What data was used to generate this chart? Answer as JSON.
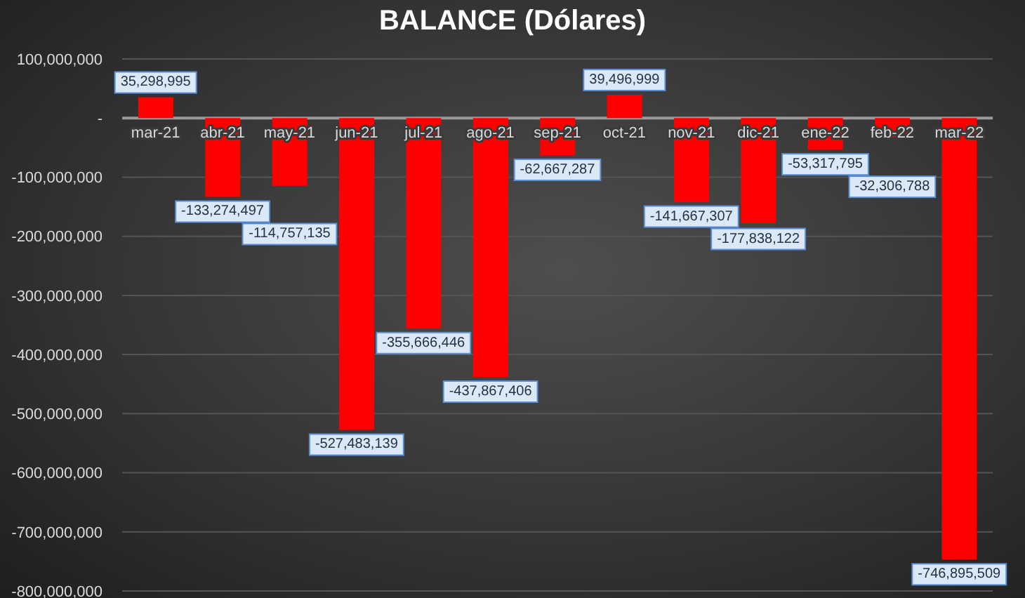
{
  "chart_data": {
    "type": "bar",
    "title": "BALANCE (Dólares)",
    "categories": [
      "mar-21",
      "abr-21",
      "may-21",
      "jun-21",
      "jul-21",
      "ago-21",
      "sep-21",
      "oct-21",
      "nov-21",
      "dic-21",
      "ene-22",
      "feb-22",
      "mar-22"
    ],
    "values": [
      35298995,
      -133274497,
      -114757135,
      -527483139,
      -355666446,
      -437867406,
      -62667287,
      39496999,
      -141667307,
      -177838122,
      -53317795,
      -32306788,
      -746895509
    ],
    "value_labels": [
      "35,298,995",
      "-133,274,497",
      "-114,757,135",
      "-527,483,139",
      "-355,666,446",
      "-437,867,406",
      "-62,667,287",
      "39,496,999",
      "-141,667,307",
      "-177,838,122",
      "-53,317,795",
      "-32,306,788",
      "-746,895,509"
    ],
    "color": "#ff0000",
    "ylim": [
      -800000000,
      100000000
    ],
    "yticks": [
      {
        "value": -800000000,
        "label": "-800,000,000"
      },
      {
        "value": -700000000,
        "label": "-700,000,000"
      },
      {
        "value": -600000000,
        "label": "-600,000,000"
      },
      {
        "value": -500000000,
        "label": "-500,000,000"
      },
      {
        "value": -400000000,
        "label": "-400,000,000"
      },
      {
        "value": -300000000,
        "label": "-300,000,000"
      },
      {
        "value": -200000000,
        "label": "-200,000,000"
      },
      {
        "value": -100000000,
        "label": "-100,000,000"
      },
      {
        "value": 0,
        "label": "-"
      },
      {
        "value": 100000000,
        "label": "100,000,000"
      }
    ],
    "grid": "y"
  }
}
